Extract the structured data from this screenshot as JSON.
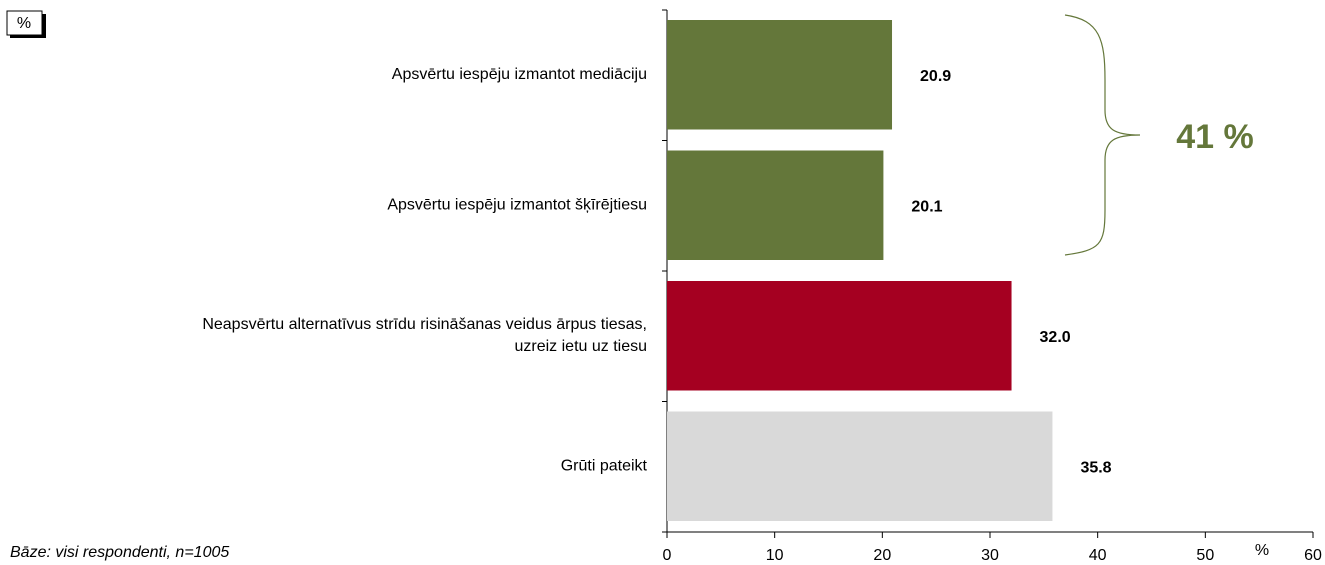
{
  "chart_data": {
    "type": "bar",
    "orientation": "horizontal",
    "categories": [
      "Apsvērtu iespēju izmantot mediāciju",
      "Apsvērtu iespēju izmantot šķīrējtiesu",
      "Neapsvērtu alternatīvus strīdu risināšanas veidus ārpus tiesas,\nuzreiz ietu uz tiesu",
      "Grūti pateikt"
    ],
    "values": [
      20.9,
      20.1,
      32.0,
      35.8
    ],
    "value_labels": [
      "20.9",
      "20.1",
      "32.0",
      "35.8"
    ],
    "colors": [
      "#64773a",
      "#64773a",
      "#a50021",
      "#d9d9d9"
    ],
    "xlim": [
      0,
      60
    ],
    "xticks": [
      0,
      10,
      20,
      30,
      40,
      50,
      60
    ],
    "x_unit": "%",
    "unit_box": "%",
    "annotation": "41 %",
    "annotation_color": "#64773a",
    "footnote": "Bāze: visi respondenti, n=1005"
  }
}
